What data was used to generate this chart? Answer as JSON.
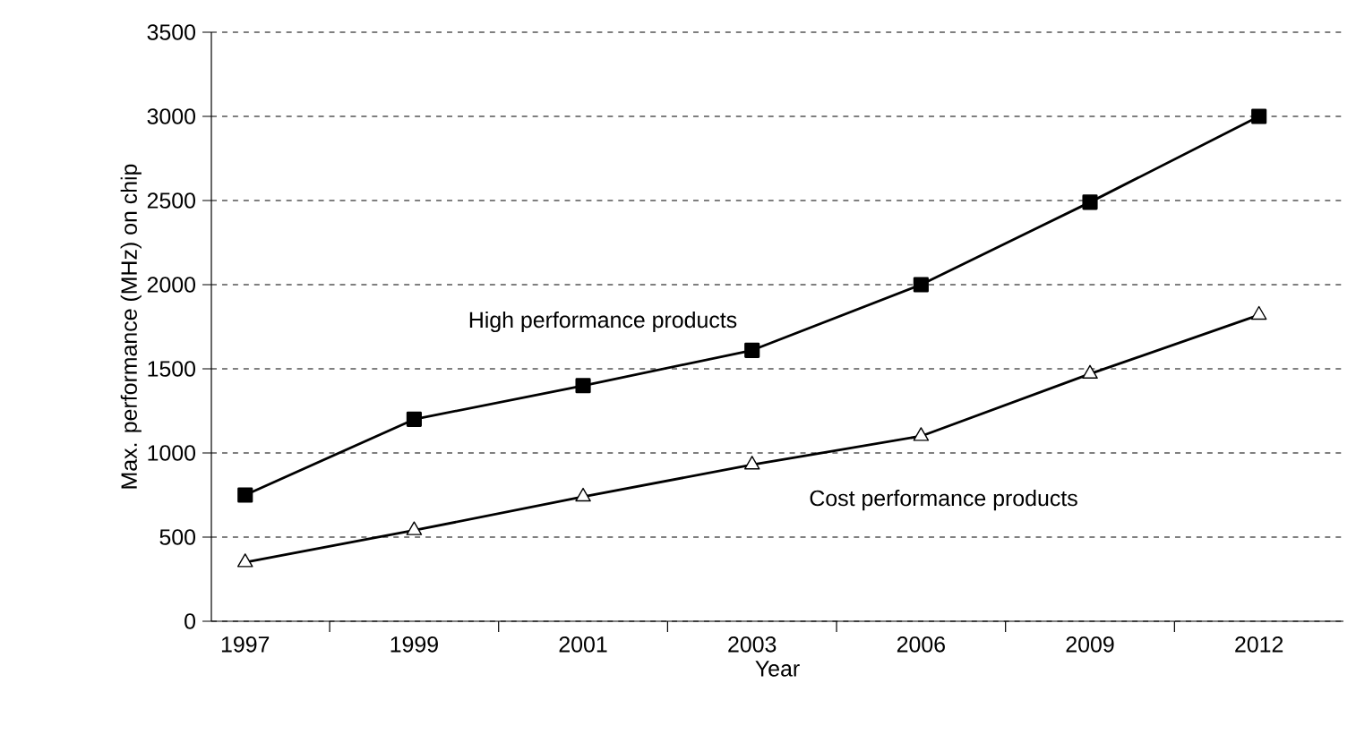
{
  "chart_data": {
    "type": "line",
    "xlabel": "Year",
    "ylabel": "Max. performance (MHz) on chip",
    "categories": [
      "1997",
      "1999",
      "2001",
      "2003",
      "2006",
      "2009",
      "2012"
    ],
    "series": [
      {
        "name": "High performance products",
        "color": "#000000",
        "marker": "square",
        "values": [
          750,
          1200,
          1400,
          1610,
          2000,
          2490,
          3000
        ]
      },
      {
        "name": "Cost performance products",
        "color": "#000000",
        "marker": "triangle",
        "values": [
          350,
          540,
          740,
          930,
          1100,
          1470,
          1820
        ]
      }
    ],
    "ylim": [
      0,
      3500
    ],
    "yticks": [
      0,
      500,
      1000,
      1500,
      2000,
      2500,
      3000,
      3500
    ],
    "grid": "y",
    "legend": false,
    "line_style": "solid"
  }
}
